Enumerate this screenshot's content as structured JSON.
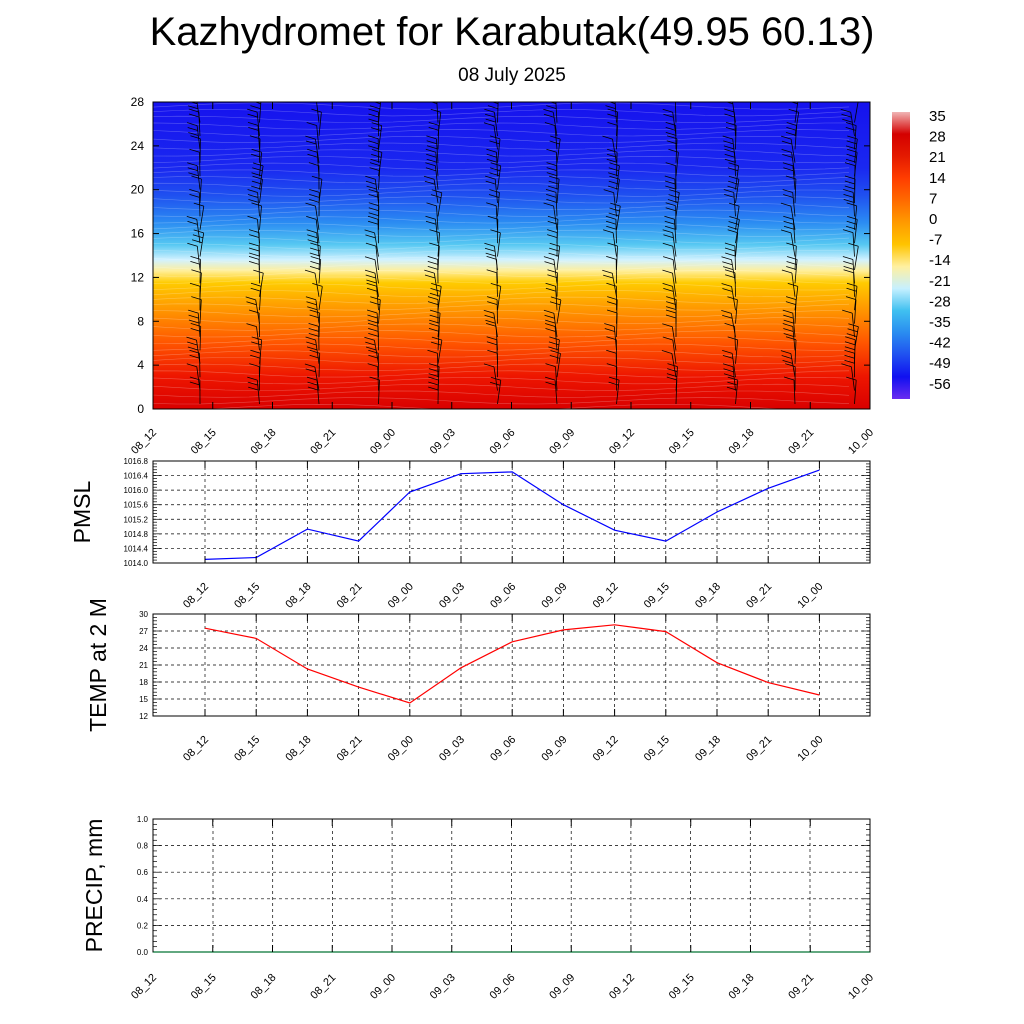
{
  "title": "Kazhydromet for Karabutak(49.95 60.13)",
  "subtitle": "08 July 2025",
  "chart_data": [
    {
      "type": "heatmap",
      "name": "temperature-profile",
      "x_ticks": [
        "08_12",
        "08_15",
        "08_18",
        "08_21",
        "09_00",
        "09_03",
        "09_06",
        "09_09",
        "09_12",
        "09_15",
        "09_18",
        "09_21",
        "10_00"
      ],
      "y_ticks": [
        0,
        4,
        8,
        12,
        16,
        20,
        24,
        28
      ],
      "ylim": [
        0,
        28
      ],
      "colorbar_labels": [
        "35",
        "28",
        "21",
        "14",
        "7",
        "0",
        "-7",
        "-14",
        "-21",
        "-28",
        "-35",
        "-42",
        "-49",
        "-56"
      ],
      "colorbar_colors": [
        "#f0b4b4",
        "#d40000",
        "#e41a00",
        "#ff3d00",
        "#ff6a00",
        "#ff9a00",
        "#ffc400",
        "#fff0a0",
        "#c6f0ff",
        "#40c0f0",
        "#2a8cf0",
        "#2050f0",
        "#1010f0",
        "#6a2cf0"
      ],
      "profile": [
        {
          "alt": 0,
          "color": "#d90000"
        },
        {
          "alt": 3,
          "color": "#ee1600"
        },
        {
          "alt": 6,
          "color": "#ff5500"
        },
        {
          "alt": 9,
          "color": "#ff9500"
        },
        {
          "alt": 11.5,
          "color": "#ffcb00"
        },
        {
          "alt": 12.6,
          "color": "#ffef9a"
        },
        {
          "alt": 13.6,
          "color": "#d2f2ff"
        },
        {
          "alt": 15,
          "color": "#56c8f2"
        },
        {
          "alt": 17,
          "color": "#2b8cf2"
        },
        {
          "alt": 19.5,
          "color": "#1f50f0"
        },
        {
          "alt": 22,
          "color": "#1a28f0"
        },
        {
          "alt": 28,
          "color": "#1612ee"
        }
      ]
    },
    {
      "type": "line",
      "name": "pmsl",
      "ylabel": "PMSL",
      "x": [
        "08_12",
        "08_15",
        "08_18",
        "08_21",
        "09_00",
        "09_03",
        "09_06",
        "09_09",
        "09_12",
        "09_15",
        "09_18",
        "09_21",
        "10_00"
      ],
      "y_ticks": [
        "1014.0",
        "1014.4",
        "1014.8",
        "1015.2",
        "1015.6",
        "1016.0",
        "1016.4",
        "1016.8"
      ],
      "ylim": [
        1014.0,
        1016.8
      ],
      "series": [
        {
          "color": "#0000ff",
          "values": [
            1014.1,
            1014.15,
            1014.93,
            1014.6,
            1015.95,
            1016.45,
            1016.5,
            1015.6,
            1014.9,
            1014.6,
            1015.4,
            1016.05,
            1016.55
          ]
        }
      ],
      "grid": true
    },
    {
      "type": "line",
      "name": "temp2m",
      "ylabel": "TEMP at 2 M",
      "x": [
        "08_12",
        "08_15",
        "08_18",
        "08_21",
        "09_00",
        "09_03",
        "09_06",
        "09_09",
        "09_12",
        "09_15",
        "09_18",
        "09_21",
        "10_00"
      ],
      "y_ticks": [
        "12",
        "15",
        "18",
        "21",
        "24",
        "27",
        "30"
      ],
      "ylim": [
        12,
        30
      ],
      "series": [
        {
          "color": "#ff0000",
          "values": [
            27.5,
            25.7,
            20.3,
            17.1,
            14.3,
            20.5,
            25.1,
            27.2,
            28.1,
            26.9,
            21.4,
            17.9,
            15.7
          ]
        }
      ],
      "grid": true
    },
    {
      "type": "line",
      "name": "precip",
      "ylabel": "PRECIP, mm",
      "x": [
        "08_12",
        "08_15",
        "08_18",
        "08_21",
        "09_00",
        "09_03",
        "09_06",
        "09_09",
        "09_12",
        "09_15",
        "09_18",
        "09_21",
        "10_00"
      ],
      "y_ticks": [
        "0.0",
        "0.2",
        "0.4",
        "0.6",
        "0.8",
        "1.0"
      ],
      "ylim": [
        0,
        1.0
      ],
      "series": [
        {
          "color": "#2e8b57",
          "values": [
            0,
            0,
            0,
            0,
            0,
            0,
            0,
            0,
            0,
            0,
            0,
            0,
            0
          ]
        }
      ],
      "grid": true
    }
  ]
}
